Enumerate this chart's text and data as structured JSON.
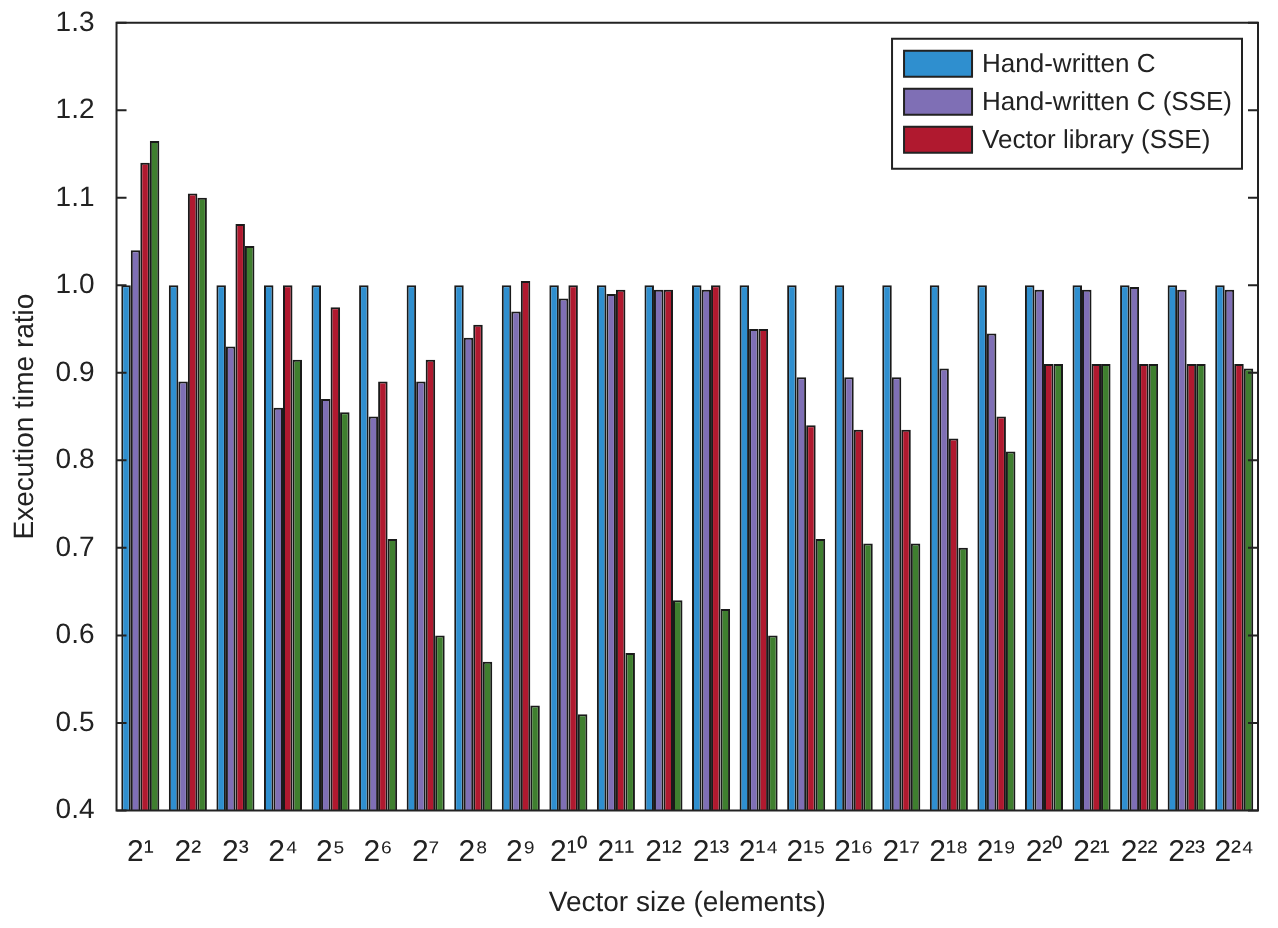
{
  "chart_data": {
    "type": "bar",
    "xlabel": "Vector size (elements)",
    "ylabel": "Execution time ratio",
    "categories": [
      "2¹",
      "2²",
      "2³",
      "2⁴",
      "2⁵",
      "2⁶",
      "2⁷",
      "2⁸",
      "2⁹",
      "2¹⁰",
      "2¹¹",
      "2¹²",
      "2¹³",
      "2¹⁴",
      "2¹⁵",
      "2¹⁶",
      "2¹⁷",
      "2¹⁸",
      "2¹⁹",
      "2²⁰",
      "2²¹",
      "2²²",
      "2²³",
      "2²⁴"
    ],
    "series": [
      {
        "name": "Hand-written C",
        "color": "#2f8fcf",
        "values": [
          1,
          1,
          1,
          1,
          1,
          1,
          1,
          1,
          1,
          1,
          1,
          1,
          1,
          1,
          1,
          1,
          1,
          1,
          1,
          1,
          1,
          1,
          1,
          1
        ]
      },
      {
        "name": "Hand-written C (SSE)",
        "color": "#7f6fb5",
        "values": [
          1.04,
          0.89,
          0.93,
          0.86,
          0.87,
          0.85,
          0.89,
          0.94,
          0.97,
          0.985,
          0.99,
          0.995,
          0.995,
          0.95,
          0.895,
          0.895,
          0.895,
          0.905,
          0.945,
          0.995,
          0.995,
          0.998,
          0.995,
          0.995
        ]
      },
      {
        "name": "Vector library (SSE)",
        "color": "#b0192f",
        "values": [
          1.14,
          1.105,
          1.07,
          1.0,
          0.975,
          0.89,
          0.915,
          0.955,
          1.005,
          1.0,
          0.995,
          0.995,
          1.0,
          0.95,
          0.84,
          0.835,
          0.835,
          0.825,
          0.85,
          0.91,
          0.91,
          0.91,
          0.91,
          0.91
        ]
      },
      {
        "color": "#3f7f2f",
        "values": [
          1.165,
          1.1,
          1.045,
          0.915,
          0.855,
          0.71,
          0.6,
          0.57,
          0.52,
          0.51,
          0.58,
          0.64,
          0.63,
          0.6,
          0.71,
          0.705,
          0.705,
          0.7,
          0.81,
          0.91,
          0.91,
          0.91,
          0.91,
          0.905
        ]
      }
    ],
    "ylim": [
      0.4,
      1.3
    ],
    "yticks": [
      {
        "value": 0.4,
        "label": "0.4"
      },
      {
        "value": 0.5,
        "label": "0.5"
      },
      {
        "value": 0.6,
        "label": "0.6"
      },
      {
        "value": 0.7,
        "label": "0.7"
      },
      {
        "value": 0.8,
        "label": "0.8"
      },
      {
        "value": 0.9,
        "label": "0.9"
      },
      {
        "value": 1.0,
        "label": "1.0"
      },
      {
        "value": 1.1,
        "label": "1.1"
      },
      {
        "value": 1.2,
        "label": "1.2"
      },
      {
        "value": 1.3,
        "label": "1.3"
      }
    ],
    "legend": "top right"
  }
}
